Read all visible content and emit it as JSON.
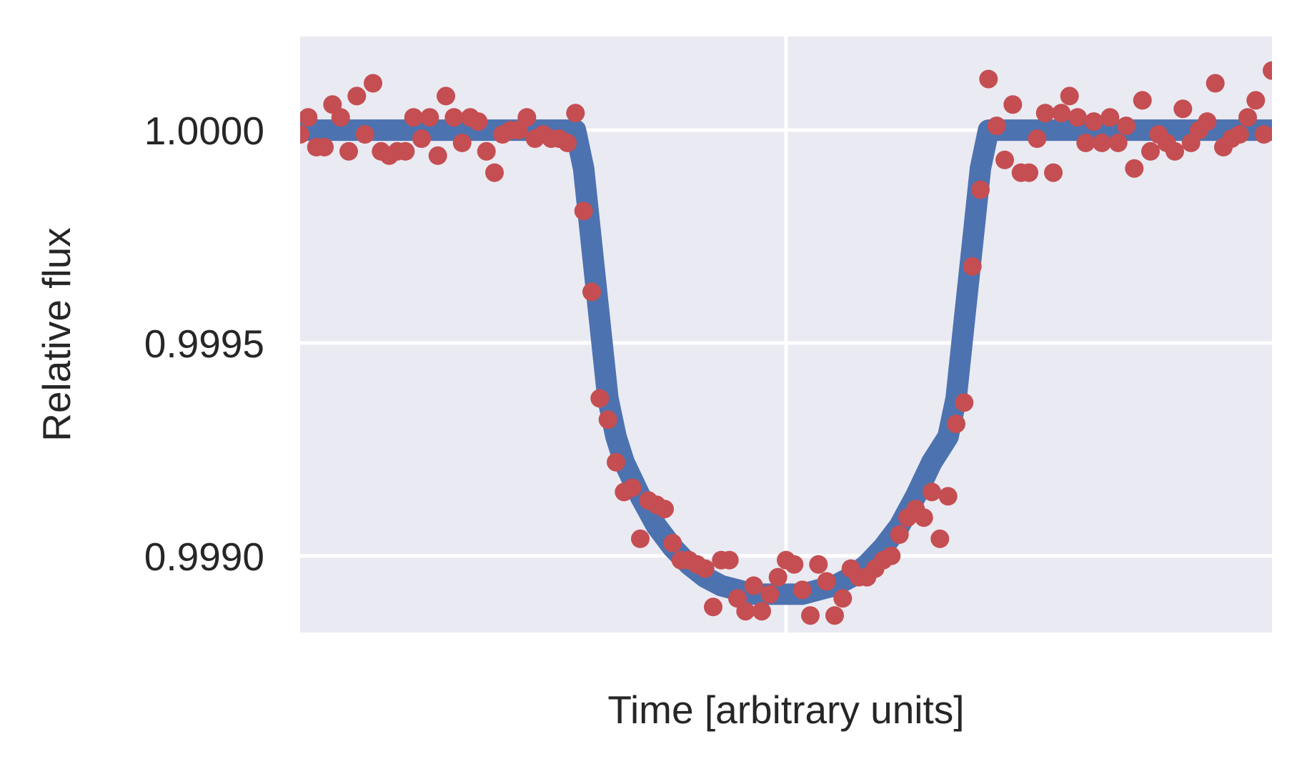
{
  "chart_data": {
    "type": "line",
    "title": "",
    "xlabel": "Time [arbitrary units]",
    "ylabel": "Relative flux",
    "xlim": [
      0,
      240
    ],
    "ylim": [
      0.99882,
      1.00022
    ],
    "x_ticks": [
      120
    ],
    "x_tick_labels": [],
    "y_ticks": [
      0.999,
      0.9995,
      1.0
    ],
    "y_tick_labels": [
      "0.9990",
      "0.9995",
      "1.0000"
    ],
    "grid": true,
    "legend": "none",
    "colors": {
      "background": "#EAEAF2",
      "grid": "#FFFFFF",
      "model": "#4C72B0",
      "data": "#C44E52",
      "text": "#262626"
    },
    "series": [
      {
        "kind": "line",
        "x": [
          0,
          5,
          10,
          15,
          20,
          25,
          30,
          35,
          40,
          45,
          50,
          55,
          60,
          65,
          68,
          70,
          72,
          74,
          76,
          78,
          80,
          84,
          88,
          92,
          96,
          100,
          104,
          108,
          112,
          116,
          120,
          124,
          128,
          132,
          136,
          140,
          144,
          148,
          152,
          156,
          160,
          162,
          164,
          166,
          168,
          170,
          172,
          175,
          180,
          185,
          190,
          195,
          200,
          205,
          210,
          215,
          220,
          225,
          230,
          235,
          240
        ],
        "y": [
          1.0,
          1.0,
          1.0,
          1.0,
          1.0,
          1.0,
          1.0,
          1.0,
          1.0,
          1.0,
          1.0,
          1.0,
          1.0,
          1.0,
          1.0,
          0.99991,
          0.99973,
          0.99955,
          0.99937,
          0.99928,
          0.99922,
          0.99914,
          0.99907,
          0.99902,
          0.99898,
          0.99895,
          0.99893,
          0.99892,
          0.99891,
          0.99891,
          0.99891,
          0.99891,
          0.99892,
          0.99893,
          0.99895,
          0.99898,
          0.99902,
          0.99907,
          0.99914,
          0.99922,
          0.99928,
          0.99937,
          0.99955,
          0.99973,
          0.99991,
          1.0,
          1.0,
          1.0,
          1.0,
          1.0,
          1.0,
          1.0,
          1.0,
          1.0,
          1.0,
          1.0,
          1.0,
          1.0,
          1.0,
          1.0,
          1.0
        ]
      },
      {
        "kind": "scatter",
        "x": [
          0,
          2,
          4,
          6,
          8,
          10,
          12,
          14,
          16,
          18,
          20,
          22,
          24,
          26,
          28,
          30,
          32,
          34,
          36,
          38,
          40,
          42,
          44,
          46,
          48,
          50,
          52,
          54,
          56,
          58,
          60,
          62,
          64,
          66,
          68,
          70,
          72,
          74,
          76,
          78,
          80,
          82,
          84,
          86,
          88,
          90,
          92,
          94,
          96,
          98,
          100,
          102,
          104,
          106,
          108,
          110,
          112,
          114,
          116,
          118,
          120,
          122,
          124,
          126,
          128,
          130,
          132,
          134,
          136,
          138,
          140,
          142,
          144,
          146,
          148,
          150,
          152,
          154,
          156,
          158,
          160,
          162,
          164,
          166,
          168,
          170,
          172,
          174,
          176,
          178,
          180,
          182,
          184,
          186,
          188,
          190,
          192,
          194,
          196,
          198,
          200,
          202,
          204,
          206,
          208,
          210,
          212,
          214,
          216,
          218,
          220,
          222,
          224,
          226,
          228,
          230,
          232,
          234,
          236,
          238,
          240
        ],
        "y": [
          0.99999,
          1.00003,
          0.99996,
          0.99996,
          1.00006,
          1.00003,
          0.99995,
          1.00008,
          0.99999,
          1.00011,
          0.99995,
          0.99994,
          0.99995,
          0.99995,
          1.00003,
          0.99998,
          1.00003,
          0.99994,
          1.00008,
          1.00003,
          0.99997,
          1.00003,
          1.00002,
          0.99995,
          0.9999,
          0.99999,
          1.0,
          1.0,
          1.00003,
          0.99998,
          0.99999,
          0.99998,
          0.99998,
          0.99997,
          1.00004,
          0.99981,
          0.99962,
          0.99937,
          0.99932,
          0.99922,
          0.99915,
          0.99916,
          0.99904,
          0.99913,
          0.99912,
          0.99911,
          0.99903,
          0.99899,
          0.99899,
          0.99898,
          0.99897,
          0.99888,
          0.99899,
          0.99899,
          0.9989,
          0.99887,
          0.99893,
          0.99887,
          0.99891,
          0.99895,
          0.99899,
          0.99898,
          0.99892,
          0.99886,
          0.99898,
          0.99894,
          0.99886,
          0.9989,
          0.99897,
          0.99895,
          0.99895,
          0.99897,
          0.99899,
          0.999,
          0.99905,
          0.99909,
          0.99911,
          0.99909,
          0.99915,
          0.99904,
          0.99914,
          0.99931,
          0.99936,
          0.99968,
          0.99986,
          1.00012,
          1.00001,
          0.99993,
          1.00006,
          0.9999,
          0.9999,
          0.99998,
          1.00004,
          0.9999,
          1.00004,
          1.00008,
          1.00003,
          0.99997,
          1.00002,
          0.99997,
          1.00003,
          0.99997,
          1.00001,
          0.99991,
          1.00007,
          0.99995,
          0.99999,
          0.99997,
          0.99995,
          1.00005,
          0.99997,
          1.0,
          1.00002,
          1.00011,
          0.99996,
          0.99998,
          0.99999,
          1.00003,
          1.00007,
          0.99999,
          1.00014
        ]
      }
    ]
  }
}
